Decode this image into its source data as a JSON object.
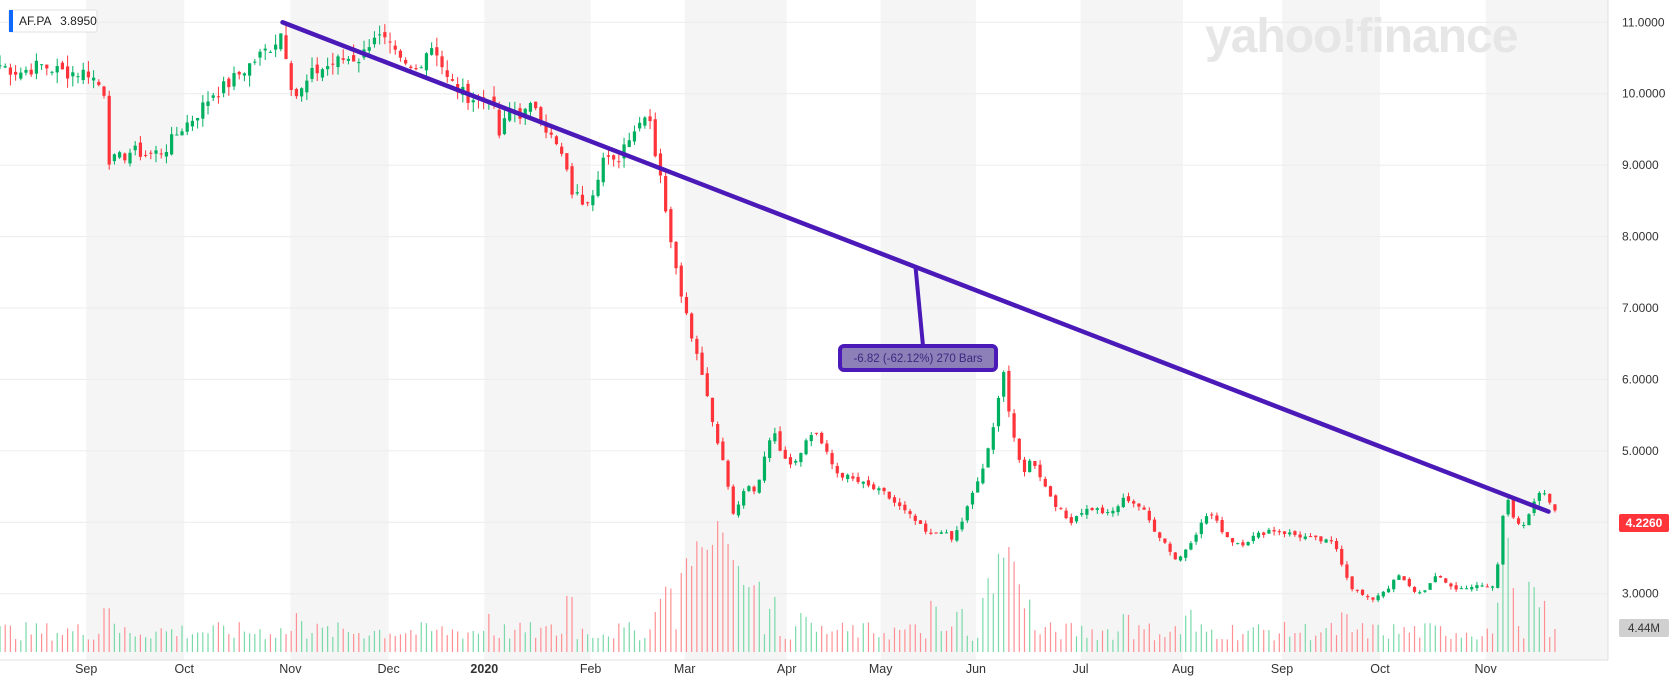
{
  "chart_data": {
    "type": "candlestick",
    "ticker": "AF.PA",
    "ticker_value": "3.8950",
    "watermark": "yahoo!finance",
    "y_axis": {
      "ticks": [
        "11.0000",
        "10.0000",
        "9.0000",
        "8.0000",
        "7.0000",
        "6.0000",
        "5.0000",
        "4.0000",
        "3.0000"
      ],
      "tick_values": [
        11,
        10,
        9,
        8,
        7,
        6,
        5,
        4,
        3
      ],
      "range": [
        2.45,
        11.2
      ]
    },
    "x_axis": {
      "labels": [
        "Sep",
        "Oct",
        "Nov",
        "Dec",
        "2020",
        "Feb",
        "Mar",
        "Apr",
        "May",
        "Jun",
        "Jul",
        "Aug",
        "Sep",
        "Oct",
        "Nov"
      ],
      "bold": [
        false,
        false,
        false,
        false,
        true,
        false,
        false,
        false,
        false,
        false,
        false,
        false,
        false,
        false,
        false
      ],
      "positions": [
        0.0536,
        0.1146,
        0.1806,
        0.2417,
        0.3012,
        0.3673,
        0.4258,
        0.4892,
        0.5477,
        0.6069,
        0.672,
        0.7357,
        0.7973,
        0.8582,
        0.9239
      ]
    },
    "grid": true,
    "price_badge": "4.2260",
    "volume_badge": "4.44M",
    "trendline": {
      "start": {
        "x": 0.1757,
        "y": 11.0
      },
      "end": {
        "x": 0.963,
        "y": 4.15
      },
      "annotation": "-6.82 (-62.12%) 270 Bars"
    },
    "keypoints": [
      [
        0.0,
        10.4
      ],
      [
        0.012,
        10.3
      ],
      [
        0.025,
        10.4
      ],
      [
        0.04,
        10.3
      ],
      [
        0.055,
        10.3
      ],
      [
        0.066,
        10.0
      ],
      [
        0.068,
        9.05
      ],
      [
        0.075,
        9.1
      ],
      [
        0.082,
        9.2
      ],
      [
        0.092,
        9.15
      ],
      [
        0.102,
        9.2
      ],
      [
        0.112,
        9.5
      ],
      [
        0.122,
        9.7
      ],
      [
        0.132,
        10.0
      ],
      [
        0.14,
        10.1
      ],
      [
        0.15,
        10.3
      ],
      [
        0.16,
        10.5
      ],
      [
        0.17,
        10.7
      ],
      [
        0.176,
        10.9
      ],
      [
        0.18,
        10.2
      ],
      [
        0.185,
        9.95
      ],
      [
        0.195,
        10.3
      ],
      [
        0.205,
        10.4
      ],
      [
        0.215,
        10.5
      ],
      [
        0.225,
        10.5
      ],
      [
        0.232,
        10.85
      ],
      [
        0.24,
        10.7
      ],
      [
        0.25,
        10.4
      ],
      [
        0.258,
        10.3
      ],
      [
        0.265,
        10.6
      ],
      [
        0.27,
        10.7
      ],
      [
        0.278,
        10.2
      ],
      [
        0.288,
        10.0
      ],
      [
        0.298,
        9.9
      ],
      [
        0.305,
        10.0
      ],
      [
        0.31,
        9.4
      ],
      [
        0.318,
        9.8
      ],
      [
        0.325,
        9.7
      ],
      [
        0.333,
        9.85
      ],
      [
        0.34,
        9.5
      ],
      [
        0.345,
        9.3
      ],
      [
        0.35,
        9.1
      ],
      [
        0.355,
        8.65
      ],
      [
        0.362,
        8.5
      ],
      [
        0.368,
        8.6
      ],
      [
        0.375,
        9.1
      ],
      [
        0.383,
        9.0
      ],
      [
        0.39,
        9.4
      ],
      [
        0.398,
        9.6
      ],
      [
        0.403,
        9.85
      ],
      [
        0.407,
        9.2
      ],
      [
        0.41,
        9.05
      ],
      [
        0.413,
        8.4
      ],
      [
        0.418,
        7.9
      ],
      [
        0.423,
        7.3
      ],
      [
        0.428,
        6.8
      ],
      [
        0.433,
        6.4
      ],
      [
        0.438,
        6.0
      ],
      [
        0.442,
        5.5
      ],
      [
        0.447,
        5.1
      ],
      [
        0.452,
        4.6
      ],
      [
        0.456,
        4.1
      ],
      [
        0.46,
        4.3
      ],
      [
        0.465,
        4.5
      ],
      [
        0.47,
        4.4
      ],
      [
        0.475,
        4.9
      ],
      [
        0.48,
        5.3
      ],
      [
        0.486,
        5.0
      ],
      [
        0.493,
        4.8
      ],
      [
        0.5,
        5.1
      ],
      [
        0.507,
        5.3
      ],
      [
        0.513,
        5.0
      ],
      [
        0.52,
        4.7
      ],
      [
        0.53,
        4.6
      ],
      [
        0.54,
        4.5
      ],
      [
        0.55,
        4.4
      ],
      [
        0.56,
        4.2
      ],
      [
        0.57,
        4.0
      ],
      [
        0.578,
        3.8
      ],
      [
        0.585,
        3.9
      ],
      [
        0.592,
        3.75
      ],
      [
        0.598,
        4.0
      ],
      [
        0.605,
        4.4
      ],
      [
        0.612,
        4.8
      ],
      [
        0.617,
        5.2
      ],
      [
        0.621,
        5.8
      ],
      [
        0.625,
        6.2
      ],
      [
        0.628,
        5.4
      ],
      [
        0.632,
        5.0
      ],
      [
        0.636,
        4.7
      ],
      [
        0.642,
        4.9
      ],
      [
        0.65,
        4.5
      ],
      [
        0.658,
        4.2
      ],
      [
        0.665,
        4.0
      ],
      [
        0.672,
        4.15
      ],
      [
        0.68,
        4.2
      ],
      [
        0.69,
        4.1
      ],
      [
        0.7,
        4.35
      ],
      [
        0.71,
        4.2
      ],
      [
        0.718,
        3.9
      ],
      [
        0.725,
        3.7
      ],
      [
        0.732,
        3.45
      ],
      [
        0.738,
        3.65
      ],
      [
        0.745,
        3.9
      ],
      [
        0.752,
        4.15
      ],
      [
        0.758,
        3.95
      ],
      [
        0.765,
        3.75
      ],
      [
        0.772,
        3.7
      ],
      [
        0.78,
        3.8
      ],
      [
        0.79,
        3.9
      ],
      [
        0.8,
        3.85
      ],
      [
        0.81,
        3.8
      ],
      [
        0.82,
        3.75
      ],
      [
        0.83,
        3.7
      ],
      [
        0.835,
        3.4
      ],
      [
        0.84,
        3.1
      ],
      [
        0.846,
        3.0
      ],
      [
        0.852,
        2.9
      ],
      [
        0.858,
        3.0
      ],
      [
        0.864,
        3.1
      ],
      [
        0.87,
        3.25
      ],
      [
        0.876,
        3.1
      ],
      [
        0.882,
        3.0
      ],
      [
        0.888,
        3.1
      ],
      [
        0.894,
        3.25
      ],
      [
        0.9,
        3.15
      ],
      [
        0.906,
        3.05
      ],
      [
        0.912,
        3.1
      ],
      [
        0.918,
        3.1
      ],
      [
        0.924,
        3.1
      ],
      [
        0.929,
        3.1
      ],
      [
        0.933,
        3.6
      ],
      [
        0.936,
        4.5
      ],
      [
        0.941,
        4.1
      ],
      [
        0.947,
        3.9
      ],
      [
        0.953,
        4.2
      ],
      [
        0.958,
        4.45
      ],
      [
        0.963,
        4.3
      ],
      [
        0.967,
        4.2
      ]
    ],
    "volume_axis": {
      "range": [
        0,
        80
      ],
      "spikes": [
        [
          0.067,
          30
        ],
        [
          0.186,
          22
        ],
        [
          0.304,
          24
        ],
        [
          0.354,
          34
        ],
        [
          0.409,
          30
        ],
        [
          0.416,
          38
        ],
        [
          0.426,
          56
        ],
        [
          0.432,
          62
        ],
        [
          0.438,
          66
        ],
        [
          0.445,
          70
        ],
        [
          0.449,
          74
        ],
        [
          0.452,
          68
        ],
        [
          0.458,
          55
        ],
        [
          0.464,
          45
        ],
        [
          0.47,
          40
        ],
        [
          0.48,
          32
        ],
        [
          0.5,
          26
        ],
        [
          0.58,
          28
        ],
        [
          0.598,
          25
        ],
        [
          0.612,
          30
        ],
        [
          0.617,
          42
        ],
        [
          0.621,
          56
        ],
        [
          0.625,
          60
        ],
        [
          0.629,
          52
        ],
        [
          0.633,
          44
        ],
        [
          0.64,
          30
        ],
        [
          0.7,
          26
        ],
        [
          0.74,
          24
        ],
        [
          0.835,
          22
        ],
        [
          0.933,
          36
        ],
        [
          0.936,
          68
        ],
        [
          0.939,
          40
        ],
        [
          0.953,
          44
        ],
        [
          0.958,
          30
        ]
      ]
    }
  }
}
